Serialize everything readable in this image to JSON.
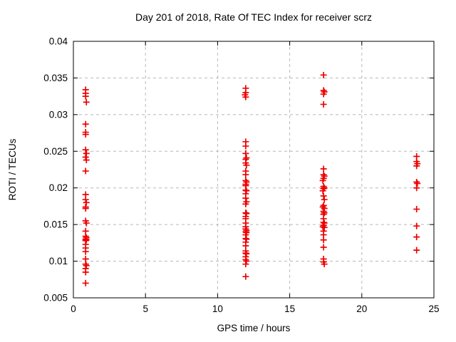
{
  "chart_data": {
    "type": "scatter",
    "title": "Day 201 of 2018, Rate Of TEC Index for receiver scrz",
    "xlabel": "GPS time / hours",
    "ylabel": "ROTI / TECUs",
    "xlim": [
      0,
      25
    ],
    "ylim": [
      0.005,
      0.04
    ],
    "x_ticks": [
      0,
      5,
      10,
      15,
      20,
      25
    ],
    "x_tick_labels": [
      "0",
      "5",
      "10",
      "15",
      "20",
      "25"
    ],
    "y_ticks": [
      0.005,
      0.01,
      0.015,
      0.02,
      0.025,
      0.03,
      0.035,
      0.04
    ],
    "y_tick_labels": [
      "0.005",
      "0.01",
      "0.015",
      "0.02",
      "0.025",
      "0.03",
      "0.035",
      "0.04"
    ],
    "grid": true,
    "legend": "none",
    "marker": "plus",
    "marker_color": "#ee0000",
    "grid_color": "#b8b8b8",
    "axis_color": "#000000",
    "background_color": "#ffffff",
    "series": [
      {
        "name": "ROTI",
        "points": [
          [
            0.85,
            0.0334
          ],
          [
            0.85,
            0.0329
          ],
          [
            0.85,
            0.0325
          ],
          [
            0.9,
            0.0317
          ],
          [
            0.85,
            0.0287
          ],
          [
            0.85,
            0.0276
          ],
          [
            0.85,
            0.0273
          ],
          [
            0.85,
            0.0252
          ],
          [
            0.9,
            0.0247
          ],
          [
            0.85,
            0.0242
          ],
          [
            0.9,
            0.0238
          ],
          [
            0.85,
            0.0223
          ],
          [
            0.85,
            0.0191
          ],
          [
            0.85,
            0.0184
          ],
          [
            0.9,
            0.018
          ],
          [
            0.85,
            0.0174
          ],
          [
            0.85,
            0.0172
          ],
          [
            0.85,
            0.0155
          ],
          [
            0.9,
            0.0152
          ],
          [
            0.85,
            0.0141
          ],
          [
            0.85,
            0.0134
          ],
          [
            0.9,
            0.0132
          ],
          [
            0.85,
            0.013
          ],
          [
            0.9,
            0.0129
          ],
          [
            0.85,
            0.0128
          ],
          [
            0.85,
            0.0123
          ],
          [
            0.85,
            0.0118
          ],
          [
            0.85,
            0.0113
          ],
          [
            0.85,
            0.0103
          ],
          [
            0.85,
            0.0096
          ],
          [
            0.9,
            0.0094
          ],
          [
            0.85,
            0.009
          ],
          [
            0.85,
            0.0085
          ],
          [
            0.85,
            0.007
          ],
          [
            11.95,
            0.0336
          ],
          [
            11.95,
            0.033
          ],
          [
            11.9,
            0.0327
          ],
          [
            11.95,
            0.0324
          ],
          [
            11.95,
            0.0263
          ],
          [
            11.95,
            0.0257
          ],
          [
            11.95,
            0.0247
          ],
          [
            12.0,
            0.0241
          ],
          [
            11.95,
            0.0239
          ],
          [
            11.95,
            0.0234
          ],
          [
            12.0,
            0.0231
          ],
          [
            11.95,
            0.0223
          ],
          [
            11.95,
            0.0218
          ],
          [
            11.95,
            0.021
          ],
          [
            12.0,
            0.0208
          ],
          [
            11.95,
            0.0205
          ],
          [
            11.95,
            0.0203
          ],
          [
            11.95,
            0.0197
          ],
          [
            12.0,
            0.0196
          ],
          [
            11.95,
            0.0192
          ],
          [
            11.95,
            0.0186
          ],
          [
            12.0,
            0.0181
          ],
          [
            11.95,
            0.0178
          ],
          [
            11.95,
            0.0166
          ],
          [
            12.0,
            0.0165
          ],
          [
            11.95,
            0.0161
          ],
          [
            11.95,
            0.0158
          ],
          [
            11.95,
            0.0152
          ],
          [
            11.95,
            0.0147
          ],
          [
            11.95,
            0.0144
          ],
          [
            12.0,
            0.0142
          ],
          [
            11.95,
            0.014
          ],
          [
            12.0,
            0.0139
          ],
          [
            11.95,
            0.0136
          ],
          [
            11.95,
            0.0131
          ],
          [
            12.0,
            0.013
          ],
          [
            11.95,
            0.0126
          ],
          [
            11.95,
            0.0121
          ],
          [
            11.95,
            0.0114
          ],
          [
            11.95,
            0.0111
          ],
          [
            12.0,
            0.011
          ],
          [
            11.95,
            0.0106
          ],
          [
            11.95,
            0.0102
          ],
          [
            12.0,
            0.01
          ],
          [
            11.95,
            0.0096
          ],
          [
            11.95,
            0.0079
          ],
          [
            17.35,
            0.0354
          ],
          [
            17.35,
            0.0333
          ],
          [
            17.4,
            0.0331
          ],
          [
            17.35,
            0.0328
          ],
          [
            17.35,
            0.0314
          ],
          [
            17.35,
            0.0226
          ],
          [
            17.35,
            0.0218
          ],
          [
            17.4,
            0.0216
          ],
          [
            17.35,
            0.0213
          ],
          [
            17.3,
            0.021
          ],
          [
            17.35,
            0.0202
          ],
          [
            17.4,
            0.02
          ],
          [
            17.35,
            0.0199
          ],
          [
            17.3,
            0.0196
          ],
          [
            17.35,
            0.0189
          ],
          [
            17.4,
            0.0184
          ],
          [
            17.35,
            0.0176
          ],
          [
            17.3,
            0.0174
          ],
          [
            17.4,
            0.0172
          ],
          [
            17.35,
            0.0168
          ],
          [
            17.4,
            0.0166
          ],
          [
            17.35,
            0.0164
          ],
          [
            17.35,
            0.0158
          ],
          [
            17.35,
            0.0153
          ],
          [
            17.4,
            0.0152
          ],
          [
            17.35,
            0.0149
          ],
          [
            17.3,
            0.0147
          ],
          [
            17.4,
            0.0146
          ],
          [
            17.35,
            0.0141
          ],
          [
            17.35,
            0.0136
          ],
          [
            17.35,
            0.0129
          ],
          [
            17.35,
            0.0119
          ],
          [
            17.35,
            0.0103
          ],
          [
            17.35,
            0.0099
          ],
          [
            17.4,
            0.0096
          ],
          [
            23.8,
            0.0243
          ],
          [
            23.8,
            0.0236
          ],
          [
            23.85,
            0.0233
          ],
          [
            23.8,
            0.023
          ],
          [
            23.8,
            0.0208
          ],
          [
            23.85,
            0.0206
          ],
          [
            23.8,
            0.02
          ],
          [
            23.8,
            0.0171
          ],
          [
            23.8,
            0.0148
          ],
          [
            23.8,
            0.0133
          ],
          [
            23.8,
            0.0115
          ]
        ]
      }
    ]
  }
}
